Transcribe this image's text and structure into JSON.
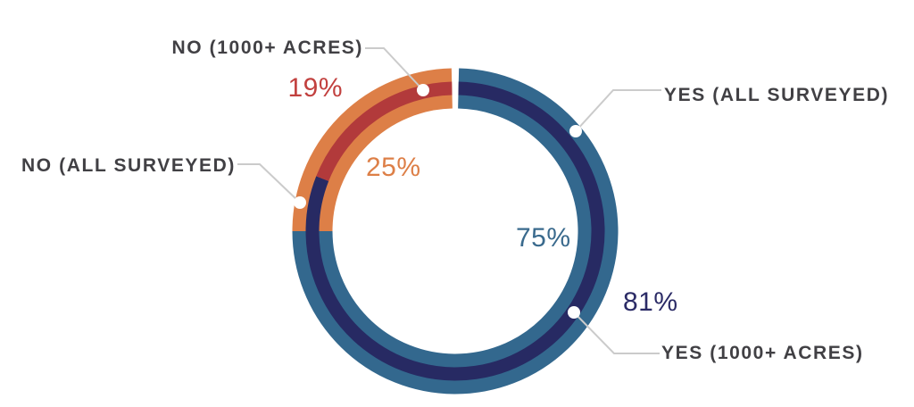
{
  "chart_data": {
    "type": "pie",
    "variant": "concentric-donut",
    "title": "",
    "legend_position": "callouts",
    "rings": [
      {
        "name": "all-surveyed-outer-band",
        "radius": 160,
        "width": 45,
        "segments": [
          {
            "key": "yes_all",
            "label": "YES (ALL SURVEYED)",
            "value": 75,
            "color": "#33688E"
          },
          {
            "key": "no_all",
            "label": "NO (ALL SURVEYED)",
            "value": 25,
            "color": "#DD7F47"
          }
        ]
      },
      {
        "name": "acres-1000-inner-stripe",
        "radius": 160,
        "width": 15,
        "segments": [
          {
            "key": "yes_1000",
            "label": "YES (1000+ ACRES)",
            "value": 81,
            "color": "#272A63"
          },
          {
            "key": "no_1000",
            "label": "NO (1000+ ACRES)",
            "value": 19,
            "color": "#B23A3B"
          }
        ]
      }
    ],
    "callouts": {
      "no_1000": {
        "label": "NO (1000+ ACRES)",
        "percent_label": "19%",
        "value": 19,
        "color": "#C2413F"
      },
      "no_all": {
        "label": "NO (ALL SURVEYED)",
        "percent_label": "25%",
        "value": 25,
        "color": "#DD7F47"
      },
      "yes_all": {
        "label": "YES (ALL SURVEYED)",
        "percent_label": "75%",
        "value": 75,
        "color": "#3A6A8D"
      },
      "yes_1000": {
        "label": "YES (1000+ ACRES)",
        "percent_label": "81%",
        "value": 81,
        "color": "#2B2B66"
      }
    },
    "label_color": "#414044",
    "leader_line_color": "#CBCBCB",
    "geometry": {
      "center": [
        510,
        259
      ],
      "top_gap_deg": 1.3,
      "start_angle_deg": 0,
      "direction": "clockwise"
    }
  }
}
